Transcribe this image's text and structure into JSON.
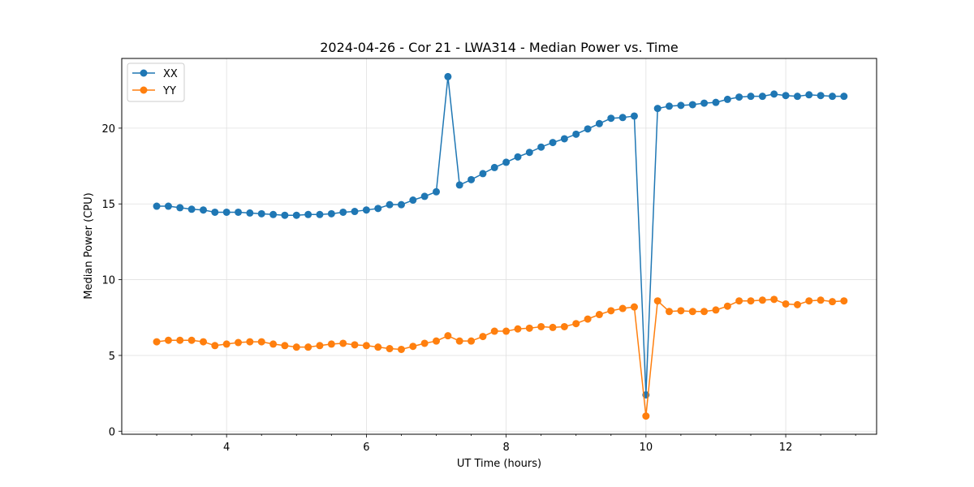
{
  "chart_data": {
    "type": "line",
    "title": "2024-04-26 - Cor 21 - LWA314 - Median Power vs. Time",
    "xlabel": "UT Time (hours)",
    "ylabel": "Median Power (CPU)",
    "xlim": [
      2.5,
      13.3
    ],
    "ylim": [
      -0.2,
      24.6
    ],
    "xticks": [
      4,
      6,
      8,
      10,
      12
    ],
    "yticks": [
      0,
      5,
      10,
      15,
      20
    ],
    "grid": true,
    "legend_position": "top-left",
    "x": [
      3.0,
      3.167,
      3.333,
      3.5,
      3.667,
      3.833,
      4.0,
      4.167,
      4.333,
      4.5,
      4.667,
      4.833,
      5.0,
      5.167,
      5.333,
      5.5,
      5.667,
      5.833,
      6.0,
      6.167,
      6.333,
      6.5,
      6.667,
      6.833,
      7.0,
      7.167,
      7.333,
      7.5,
      7.667,
      7.833,
      8.0,
      8.167,
      8.333,
      8.5,
      8.667,
      8.833,
      9.0,
      9.167,
      9.333,
      9.5,
      9.667,
      9.833,
      10.0,
      10.167,
      10.333,
      10.5,
      10.667,
      10.833,
      11.0,
      11.167,
      11.333,
      11.5,
      11.667,
      11.833,
      12.0,
      12.167,
      12.333,
      12.5,
      12.667,
      12.833
    ],
    "series": [
      {
        "name": "XX",
        "color": "#1f77b4",
        "values": [
          14.85,
          14.85,
          14.75,
          14.65,
          14.6,
          14.45,
          14.45,
          14.45,
          14.4,
          14.35,
          14.3,
          14.25,
          14.25,
          14.3,
          14.3,
          14.35,
          14.45,
          14.5,
          14.6,
          14.7,
          14.95,
          14.95,
          15.25,
          15.5,
          15.8,
          23.4,
          16.25,
          16.6,
          17.0,
          17.4,
          17.75,
          18.1,
          18.4,
          18.75,
          19.05,
          19.3,
          19.6,
          19.95,
          20.3,
          20.65,
          20.7,
          20.8,
          2.4,
          21.3,
          21.45,
          21.5,
          21.55,
          21.65,
          21.7,
          21.9,
          22.05,
          22.1,
          22.1,
          22.25,
          22.15,
          22.1,
          22.2,
          22.15,
          22.1,
          22.1
        ]
      },
      {
        "name": "YY",
        "color": "#ff7f0e",
        "values": [
          5.9,
          6.0,
          6.0,
          6.0,
          5.9,
          5.65,
          5.75,
          5.85,
          5.9,
          5.9,
          5.75,
          5.65,
          5.55,
          5.55,
          5.65,
          5.75,
          5.8,
          5.7,
          5.65,
          5.55,
          5.45,
          5.4,
          5.6,
          5.8,
          5.95,
          6.3,
          5.95,
          5.95,
          6.25,
          6.6,
          6.6,
          6.75,
          6.8,
          6.9,
          6.85,
          6.9,
          7.1,
          7.4,
          7.7,
          7.95,
          8.1,
          8.2,
          1.0,
          8.6,
          7.9,
          7.95,
          7.9,
          7.9,
          8.0,
          8.25,
          8.6,
          8.6,
          8.65,
          8.7,
          8.4,
          8.35,
          8.6,
          8.65,
          8.55,
          8.6
        ]
      }
    ]
  }
}
